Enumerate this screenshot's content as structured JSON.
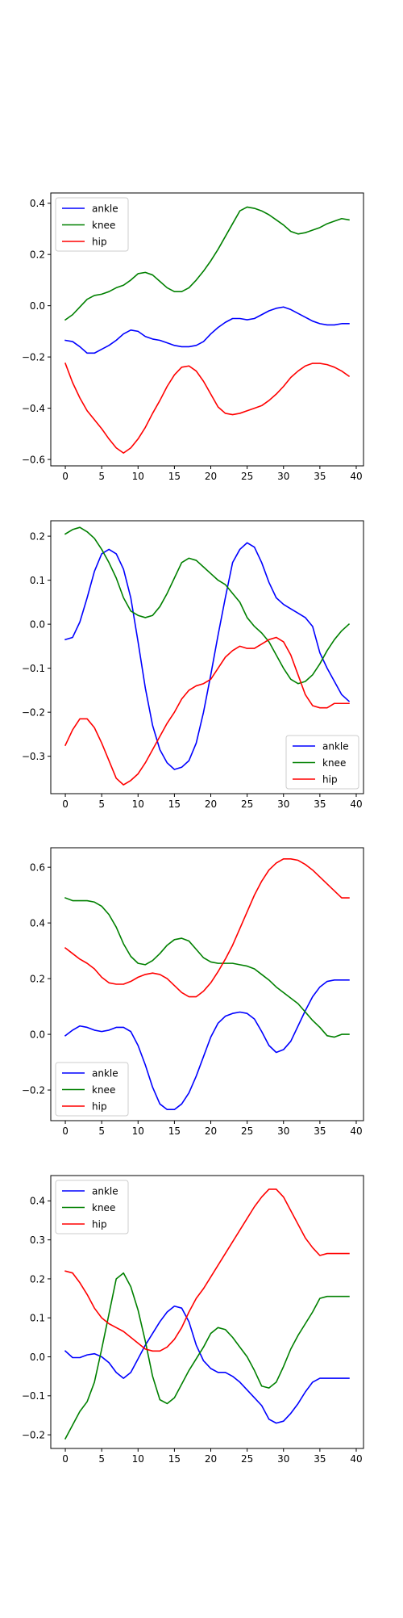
{
  "chart_data": [
    {
      "type": "line",
      "x": [
        0,
        1,
        2,
        3,
        4,
        5,
        6,
        7,
        8,
        9,
        10,
        11,
        12,
        13,
        14,
        15,
        16,
        17,
        18,
        19,
        20,
        21,
        22,
        23,
        24,
        25,
        26,
        27,
        28,
        29,
        30,
        31,
        32,
        33,
        34,
        35,
        36,
        37,
        38,
        39
      ],
      "xlim": [
        -2,
        41
      ],
      "ylim": [
        -0.625,
        0.44
      ],
      "xticks": [
        0,
        5,
        10,
        15,
        20,
        25,
        30,
        35,
        40
      ],
      "yticks": [
        -0.6,
        -0.4,
        -0.2,
        0.0,
        0.2,
        0.4
      ],
      "ytick_labels": [
        "−0.6",
        "−0.4",
        "−0.2",
        "0.0",
        "0.2",
        "0.4"
      ],
      "legend": "upper-left",
      "series": [
        {
          "name": "ankle",
          "color": "#0000ff",
          "values": [
            -0.135,
            -0.14,
            -0.16,
            -0.185,
            -0.185,
            -0.17,
            -0.155,
            -0.135,
            -0.11,
            -0.095,
            -0.1,
            -0.12,
            -0.13,
            -0.135,
            -0.145,
            -0.155,
            -0.16,
            -0.16,
            -0.155,
            -0.14,
            -0.11,
            -0.085,
            -0.065,
            -0.05,
            -0.05,
            -0.055,
            -0.05,
            -0.035,
            -0.02,
            -0.01,
            -0.005,
            -0.015,
            -0.03,
            -0.045,
            -0.06,
            -0.07,
            -0.075,
            -0.075,
            -0.07,
            -0.07
          ]
        },
        {
          "name": "knee",
          "color": "#008000",
          "values": [
            -0.055,
            -0.035,
            -0.005,
            0.025,
            0.04,
            0.045,
            0.055,
            0.07,
            0.08,
            0.1,
            0.125,
            0.13,
            0.12,
            0.095,
            0.07,
            0.055,
            0.055,
            0.07,
            0.1,
            0.135,
            0.175,
            0.22,
            0.27,
            0.32,
            0.37,
            0.385,
            0.38,
            0.37,
            0.355,
            0.335,
            0.315,
            0.29,
            0.28,
            0.285,
            0.295,
            0.305,
            0.32,
            0.33,
            0.34,
            0.335
          ]
        },
        {
          "name": "hip",
          "color": "#ff0000",
          "values": [
            -0.225,
            -0.3,
            -0.36,
            -0.41,
            -0.445,
            -0.48,
            -0.52,
            -0.555,
            -0.575,
            -0.555,
            -0.52,
            -0.475,
            -0.42,
            -0.37,
            -0.315,
            -0.27,
            -0.24,
            -0.235,
            -0.255,
            -0.295,
            -0.345,
            -0.395,
            -0.42,
            -0.425,
            -0.42,
            -0.41,
            -0.4,
            -0.39,
            -0.37,
            -0.345,
            -0.315,
            -0.28,
            -0.255,
            -0.235,
            -0.225,
            -0.225,
            -0.23,
            -0.24,
            -0.255,
            -0.275
          ]
        }
      ]
    },
    {
      "type": "line",
      "x": [
        0,
        1,
        2,
        3,
        4,
        5,
        6,
        7,
        8,
        9,
        10,
        11,
        12,
        13,
        14,
        15,
        16,
        17,
        18,
        19,
        20,
        21,
        22,
        23,
        24,
        25,
        26,
        27,
        28,
        29,
        30,
        31,
        32,
        33,
        34,
        35,
        36,
        37,
        38,
        39
      ],
      "xlim": [
        -2,
        41
      ],
      "ylim": [
        -0.385,
        0.235
      ],
      "xticks": [
        0,
        5,
        10,
        15,
        20,
        25,
        30,
        35,
        40
      ],
      "yticks": [
        -0.3,
        -0.2,
        -0.1,
        0.0,
        0.1,
        0.2
      ],
      "ytick_labels": [
        "−0.3",
        "−0.2",
        "−0.1",
        "0.0",
        "0.1",
        "0.2"
      ],
      "legend": "lower-right",
      "series": [
        {
          "name": "ankle",
          "color": "#0000ff",
          "values": [
            -0.035,
            -0.03,
            0.005,
            0.06,
            0.12,
            0.16,
            0.17,
            0.16,
            0.125,
            0.06,
            -0.04,
            -0.145,
            -0.23,
            -0.285,
            -0.315,
            -0.33,
            -0.325,
            -0.31,
            -0.27,
            -0.2,
            -0.115,
            -0.025,
            0.06,
            0.14,
            0.17,
            0.185,
            0.175,
            0.14,
            0.095,
            0.06,
            0.045,
            0.035,
            0.025,
            0.015,
            -0.005,
            -0.065,
            -0.1,
            -0.13,
            -0.16,
            -0.175
          ]
        },
        {
          "name": "knee",
          "color": "#008000",
          "values": [
            0.205,
            0.215,
            0.22,
            0.21,
            0.195,
            0.17,
            0.14,
            0.105,
            0.06,
            0.03,
            0.02,
            0.015,
            0.02,
            0.04,
            0.07,
            0.105,
            0.14,
            0.15,
            0.145,
            0.13,
            0.115,
            0.1,
            0.09,
            0.07,
            0.05,
            0.015,
            -0.005,
            -0.02,
            -0.04,
            -0.07,
            -0.1,
            -0.125,
            -0.135,
            -0.13,
            -0.115,
            -0.09,
            -0.06,
            -0.035,
            -0.015,
            0.0
          ]
        },
        {
          "name": "hip",
          "color": "#ff0000",
          "values": [
            -0.275,
            -0.24,
            -0.215,
            -0.215,
            -0.235,
            -0.27,
            -0.31,
            -0.35,
            -0.365,
            -0.355,
            -0.34,
            -0.315,
            -0.285,
            -0.255,
            -0.225,
            -0.2,
            -0.17,
            -0.15,
            -0.14,
            -0.135,
            -0.125,
            -0.1,
            -0.075,
            -0.06,
            -0.05,
            -0.055,
            -0.055,
            -0.045,
            -0.035,
            -0.03,
            -0.04,
            -0.07,
            -0.115,
            -0.16,
            -0.185,
            -0.19,
            -0.19,
            -0.18,
            -0.18,
            -0.18
          ]
        }
      ]
    },
    {
      "type": "line",
      "x": [
        0,
        1,
        2,
        3,
        4,
        5,
        6,
        7,
        8,
        9,
        10,
        11,
        12,
        13,
        14,
        15,
        16,
        17,
        18,
        19,
        20,
        21,
        22,
        23,
        24,
        25,
        26,
        27,
        28,
        29,
        30,
        31,
        32,
        33,
        34,
        35,
        36,
        37,
        38,
        39
      ],
      "xlim": [
        -2,
        41
      ],
      "ylim": [
        -0.31,
        0.67
      ],
      "xticks": [
        0,
        5,
        10,
        15,
        20,
        25,
        30,
        35,
        40
      ],
      "yticks": [
        -0.2,
        0.0,
        0.2,
        0.4,
        0.6
      ],
      "ytick_labels": [
        "−0.2",
        "0.0",
        "0.2",
        "0.4",
        "0.6"
      ],
      "legend": "lower-left",
      "series": [
        {
          "name": "ankle",
          "color": "#0000ff",
          "values": [
            -0.005,
            0.015,
            0.03,
            0.025,
            0.015,
            0.01,
            0.015,
            0.025,
            0.025,
            0.01,
            -0.04,
            -0.11,
            -0.19,
            -0.25,
            -0.27,
            -0.27,
            -0.25,
            -0.21,
            -0.15,
            -0.08,
            -0.01,
            0.04,
            0.065,
            0.075,
            0.08,
            0.075,
            0.055,
            0.01,
            -0.04,
            -0.065,
            -0.055,
            -0.025,
            0.03,
            0.085,
            0.135,
            0.17,
            0.19,
            0.195,
            0.195,
            0.195
          ]
        },
        {
          "name": "knee",
          "color": "#008000",
          "values": [
            0.49,
            0.48,
            0.48,
            0.48,
            0.475,
            0.46,
            0.43,
            0.385,
            0.325,
            0.28,
            0.255,
            0.25,
            0.265,
            0.29,
            0.32,
            0.34,
            0.345,
            0.335,
            0.305,
            0.275,
            0.26,
            0.255,
            0.255,
            0.255,
            0.25,
            0.245,
            0.235,
            0.215,
            0.195,
            0.17,
            0.15,
            0.13,
            0.11,
            0.08,
            0.05,
            0.025,
            -0.005,
            -0.01,
            0.0,
            0.0
          ]
        },
        {
          "name": "hip",
          "color": "#ff0000",
          "values": [
            0.31,
            0.29,
            0.27,
            0.255,
            0.235,
            0.205,
            0.185,
            0.18,
            0.18,
            0.19,
            0.205,
            0.215,
            0.22,
            0.215,
            0.2,
            0.175,
            0.15,
            0.135,
            0.135,
            0.155,
            0.185,
            0.225,
            0.27,
            0.32,
            0.38,
            0.44,
            0.5,
            0.55,
            0.59,
            0.615,
            0.63,
            0.63,
            0.625,
            0.61,
            0.59,
            0.565,
            0.54,
            0.515,
            0.49,
            0.49
          ]
        }
      ]
    },
    {
      "type": "line",
      "x": [
        0,
        1,
        2,
        3,
        4,
        5,
        6,
        7,
        8,
        9,
        10,
        11,
        12,
        13,
        14,
        15,
        16,
        17,
        18,
        19,
        20,
        21,
        22,
        23,
        24,
        25,
        26,
        27,
        28,
        29,
        30,
        31,
        32,
        33,
        34,
        35,
        36,
        37,
        38,
        39
      ],
      "xlim": [
        -2,
        41
      ],
      "ylim": [
        -0.235,
        0.465
      ],
      "xticks": [
        0,
        5,
        10,
        15,
        20,
        25,
        30,
        35,
        40
      ],
      "yticks": [
        -0.2,
        -0.1,
        0.0,
        0.1,
        0.2,
        0.3,
        0.4
      ],
      "ytick_labels": [
        "−0.2",
        "−0.1",
        "0.0",
        "0.1",
        "0.2",
        "0.3",
        "0.4"
      ],
      "legend": "upper-left",
      "series": [
        {
          "name": "ankle",
          "color": "#0000ff",
          "values": [
            0.015,
            -0.002,
            -0.002,
            0.005,
            0.008,
            0.0,
            -0.015,
            -0.04,
            -0.055,
            -0.04,
            -0.005,
            0.03,
            0.06,
            0.09,
            0.115,
            0.13,
            0.125,
            0.09,
            0.03,
            -0.01,
            -0.03,
            -0.04,
            -0.04,
            -0.05,
            -0.065,
            -0.085,
            -0.105,
            -0.125,
            -0.16,
            -0.17,
            -0.165,
            -0.145,
            -0.12,
            -0.09,
            -0.065,
            -0.055,
            -0.055,
            -0.055,
            -0.055,
            -0.055
          ]
        },
        {
          "name": "knee",
          "color": "#008000",
          "values": [
            -0.21,
            -0.175,
            -0.14,
            -0.115,
            -0.065,
            0.02,
            0.11,
            0.2,
            0.215,
            0.18,
            0.12,
            0.04,
            -0.05,
            -0.11,
            -0.12,
            -0.105,
            -0.07,
            -0.035,
            -0.005,
            0.025,
            0.06,
            0.075,
            0.07,
            0.05,
            0.025,
            0.0,
            -0.035,
            -0.075,
            -0.08,
            -0.065,
            -0.025,
            0.02,
            0.055,
            0.085,
            0.115,
            0.15,
            0.155,
            0.155,
            0.155,
            0.155
          ]
        },
        {
          "name": "hip",
          "color": "#ff0000",
          "values": [
            0.22,
            0.215,
            0.19,
            0.16,
            0.125,
            0.1,
            0.085,
            0.075,
            0.065,
            0.05,
            0.035,
            0.02,
            0.015,
            0.015,
            0.025,
            0.045,
            0.075,
            0.115,
            0.15,
            0.175,
            0.205,
            0.235,
            0.265,
            0.295,
            0.325,
            0.355,
            0.385,
            0.41,
            0.43,
            0.43,
            0.41,
            0.375,
            0.34,
            0.305,
            0.28,
            0.26,
            0.265,
            0.265,
            0.265,
            0.265
          ]
        }
      ]
    }
  ]
}
